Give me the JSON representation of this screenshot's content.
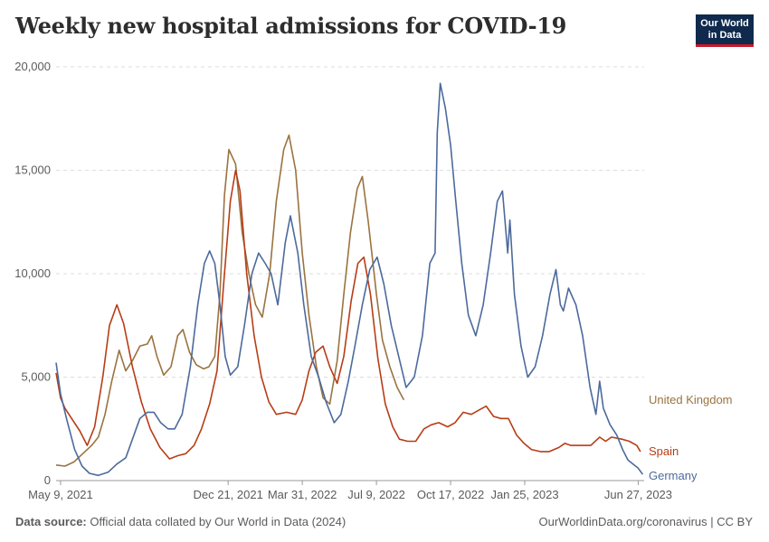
{
  "title": "Weekly new hospital admissions for COVID-19",
  "logo": {
    "line1": "Our World",
    "line2": "in Data"
  },
  "footer": {
    "source_label": "Data source:",
    "source_text": "Official data collated by Our World in Data (2024)",
    "url_text": "OurWorldinData.org/coronavirus | CC BY"
  },
  "colors": {
    "germany": "#4c6a9c",
    "spain": "#b73d16",
    "uk": "#9a7340",
    "grid": "#dddddd",
    "text": "#5b5b5b"
  },
  "chart_data": {
    "type": "line",
    "title": "Weekly new hospital admissions for COVID-19",
    "xlabel": "",
    "ylabel": "",
    "ylim": [
      0,
      20000
    ],
    "yticks": [
      {
        "value": 0,
        "label": "0"
      },
      {
        "value": 5000,
        "label": "5,000"
      },
      {
        "value": 10000,
        "label": "10,000"
      },
      {
        "value": 15000,
        "label": "15,000"
      },
      {
        "value": 20000,
        "label": "20,000"
      }
    ],
    "xlim": [
      "2021-05-03",
      "2023-07-05"
    ],
    "xticks": [
      {
        "date": "2021-05-09",
        "label": "May 9, 2021"
      },
      {
        "date": "2021-12-21",
        "label": "Dec 21, 2021"
      },
      {
        "date": "2022-03-31",
        "label": "Mar 31, 2022"
      },
      {
        "date": "2022-07-09",
        "label": "Jul 9, 2022"
      },
      {
        "date": "2022-10-17",
        "label": "Oct 17, 2022"
      },
      {
        "date": "2023-01-25",
        "label": "Jan 25, 2023"
      },
      {
        "date": "2023-06-27",
        "label": "Jun 27, 2023"
      }
    ],
    "grid": "horizontal dashed",
    "series": [
      {
        "name": "United Kingdom",
        "key": "uk",
        "points": [
          [
            "2021-05-03",
            750
          ],
          [
            "2021-05-15",
            700
          ],
          [
            "2021-05-27",
            900
          ],
          [
            "2021-06-08",
            1300
          ],
          [
            "2021-06-20",
            1700
          ],
          [
            "2021-06-29",
            2100
          ],
          [
            "2021-07-08",
            3200
          ],
          [
            "2021-07-17",
            4800
          ],
          [
            "2021-07-27",
            6300
          ],
          [
            "2021-08-05",
            5300
          ],
          [
            "2021-08-14",
            5800
          ],
          [
            "2021-08-24",
            6500
          ],
          [
            "2021-09-03",
            6600
          ],
          [
            "2021-09-09",
            7000
          ],
          [
            "2021-09-16",
            6000
          ],
          [
            "2021-09-25",
            5100
          ],
          [
            "2021-10-05",
            5500
          ],
          [
            "2021-10-14",
            7000
          ],
          [
            "2021-10-21",
            7300
          ],
          [
            "2021-10-30",
            6200
          ],
          [
            "2021-11-08",
            5600
          ],
          [
            "2021-11-18",
            5400
          ],
          [
            "2021-11-25",
            5500
          ],
          [
            "2021-12-03",
            6000
          ],
          [
            "2021-12-10",
            9000
          ],
          [
            "2021-12-16",
            13800
          ],
          [
            "2021-12-22",
            16000
          ],
          [
            "2021-12-31",
            15300
          ],
          [
            "2022-01-09",
            12000
          ],
          [
            "2022-01-18",
            10000
          ],
          [
            "2022-01-27",
            8500
          ],
          [
            "2022-02-05",
            7900
          ],
          [
            "2022-02-15",
            10000
          ],
          [
            "2022-02-24",
            13500
          ],
          [
            "2022-03-06",
            16000
          ],
          [
            "2022-03-13",
            16700
          ],
          [
            "2022-03-22",
            15000
          ],
          [
            "2022-03-31",
            11000
          ],
          [
            "2022-04-09",
            8000
          ],
          [
            "2022-04-19",
            5500
          ],
          [
            "2022-04-28",
            4000
          ],
          [
            "2022-05-07",
            3700
          ],
          [
            "2022-05-17",
            5800
          ],
          [
            "2022-05-26",
            9000
          ],
          [
            "2022-06-04",
            12000
          ],
          [
            "2022-06-13",
            14100
          ],
          [
            "2022-06-20",
            14700
          ],
          [
            "2022-06-28",
            12500
          ],
          [
            "2022-07-09",
            9000
          ],
          [
            "2022-07-17",
            6800
          ],
          [
            "2022-07-27",
            5500
          ],
          [
            "2022-08-06",
            4500
          ],
          [
            "2022-08-15",
            3900
          ]
        ]
      },
      {
        "name": "Spain",
        "key": "spain",
        "points": [
          [
            "2021-05-03",
            5200
          ],
          [
            "2021-05-09",
            4000
          ],
          [
            "2021-05-15",
            3500
          ],
          [
            "2021-05-24",
            3000
          ],
          [
            "2021-06-04",
            2400
          ],
          [
            "2021-06-14",
            1700
          ],
          [
            "2021-06-24",
            2600
          ],
          [
            "2021-07-05",
            5000
          ],
          [
            "2021-07-14",
            7500
          ],
          [
            "2021-07-24",
            8500
          ],
          [
            "2021-08-02",
            7600
          ],
          [
            "2021-08-14",
            5500
          ],
          [
            "2021-08-26",
            3800
          ],
          [
            "2021-09-07",
            2500
          ],
          [
            "2021-09-20",
            1600
          ],
          [
            "2021-10-03",
            1050
          ],
          [
            "2021-10-14",
            1200
          ],
          [
            "2021-10-25",
            1300
          ],
          [
            "2021-11-05",
            1700
          ],
          [
            "2021-11-15",
            2500
          ],
          [
            "2021-11-26",
            3700
          ],
          [
            "2021-12-06",
            5300
          ],
          [
            "2021-12-15",
            9500
          ],
          [
            "2021-12-24",
            13500
          ],
          [
            "2021-12-31",
            15000
          ],
          [
            "2022-01-06",
            14000
          ],
          [
            "2022-01-15",
            10000
          ],
          [
            "2022-01-25",
            7000
          ],
          [
            "2022-02-04",
            5000
          ],
          [
            "2022-02-14",
            3800
          ],
          [
            "2022-02-24",
            3200
          ],
          [
            "2022-03-10",
            3300
          ],
          [
            "2022-03-22",
            3200
          ],
          [
            "2022-03-31",
            3900
          ],
          [
            "2022-04-09",
            5300
          ],
          [
            "2022-04-18",
            6200
          ],
          [
            "2022-04-28",
            6500
          ],
          [
            "2022-05-07",
            5500
          ],
          [
            "2022-05-17",
            4700
          ],
          [
            "2022-05-26",
            6000
          ],
          [
            "2022-06-05",
            8700
          ],
          [
            "2022-06-14",
            10500
          ],
          [
            "2022-06-22",
            10800
          ],
          [
            "2022-07-01",
            9000
          ],
          [
            "2022-07-11",
            5900
          ],
          [
            "2022-07-21",
            3700
          ],
          [
            "2022-07-31",
            2600
          ],
          [
            "2022-08-09",
            2000
          ],
          [
            "2022-08-20",
            1900
          ],
          [
            "2022-08-31",
            1900
          ],
          [
            "2022-09-11",
            2500
          ],
          [
            "2022-09-21",
            2700
          ],
          [
            "2022-10-01",
            2800
          ],
          [
            "2022-10-13",
            2600
          ],
          [
            "2022-10-23",
            2800
          ],
          [
            "2022-11-03",
            3300
          ],
          [
            "2022-11-14",
            3200
          ],
          [
            "2022-11-24",
            3400
          ],
          [
            "2022-12-04",
            3600
          ],
          [
            "2022-12-14",
            3100
          ],
          [
            "2022-12-24",
            3000
          ],
          [
            "2023-01-03",
            3000
          ],
          [
            "2023-01-14",
            2200
          ],
          [
            "2023-01-24",
            1800
          ],
          [
            "2023-02-03",
            1500
          ],
          [
            "2023-02-15",
            1400
          ],
          [
            "2023-02-27",
            1400
          ],
          [
            "2023-03-12",
            1600
          ],
          [
            "2023-03-20",
            1800
          ],
          [
            "2023-03-28",
            1700
          ],
          [
            "2023-04-10",
            1700
          ],
          [
            "2023-04-24",
            1700
          ],
          [
            "2023-05-06",
            2100
          ],
          [
            "2023-05-14",
            1900
          ],
          [
            "2023-05-22",
            2100
          ],
          [
            "2023-06-05",
            2000
          ],
          [
            "2023-06-15",
            1900
          ],
          [
            "2023-06-25",
            1700
          ],
          [
            "2023-06-30",
            1400
          ]
        ]
      },
      {
        "name": "Germany",
        "key": "germany",
        "points": [
          [
            "2021-05-03",
            5700
          ],
          [
            "2021-05-09",
            4200
          ],
          [
            "2021-05-17",
            3000
          ],
          [
            "2021-05-28",
            1500
          ],
          [
            "2021-06-07",
            700
          ],
          [
            "2021-06-17",
            350
          ],
          [
            "2021-06-29",
            250
          ],
          [
            "2021-07-12",
            400
          ],
          [
            "2021-07-24",
            800
          ],
          [
            "2021-08-05",
            1100
          ],
          [
            "2021-08-14",
            2000
          ],
          [
            "2021-08-24",
            3000
          ],
          [
            "2021-09-03",
            3300
          ],
          [
            "2021-09-12",
            3300
          ],
          [
            "2021-09-21",
            2800
          ],
          [
            "2021-10-01",
            2500
          ],
          [
            "2021-10-10",
            2500
          ],
          [
            "2021-10-20",
            3200
          ],
          [
            "2021-10-31",
            5500
          ],
          [
            "2021-11-10",
            8500
          ],
          [
            "2021-11-19",
            10500
          ],
          [
            "2021-11-26",
            11100
          ],
          [
            "2021-12-03",
            10500
          ],
          [
            "2021-12-10",
            8500
          ],
          [
            "2021-12-17",
            6000
          ],
          [
            "2021-12-24",
            5100
          ],
          [
            "2022-01-03",
            5500
          ],
          [
            "2022-01-12",
            7500
          ],
          [
            "2022-01-22",
            10000
          ],
          [
            "2022-01-31",
            11000
          ],
          [
            "2022-02-09",
            10500
          ],
          [
            "2022-02-17",
            10000
          ],
          [
            "2022-02-26",
            8500
          ],
          [
            "2022-03-08",
            11500
          ],
          [
            "2022-03-15",
            12800
          ],
          [
            "2022-03-25",
            11000
          ],
          [
            "2022-04-02",
            8500
          ],
          [
            "2022-04-12",
            6000
          ],
          [
            "2022-04-22",
            5000
          ],
          [
            "2022-05-02",
            3800
          ],
          [
            "2022-05-13",
            2800
          ],
          [
            "2022-05-22",
            3200
          ],
          [
            "2022-06-01",
            4800
          ],
          [
            "2022-06-10",
            6500
          ],
          [
            "2022-06-20",
            8500
          ],
          [
            "2022-06-30",
            10200
          ],
          [
            "2022-07-10",
            10800
          ],
          [
            "2022-07-19",
            9500
          ],
          [
            "2022-07-29",
            7500
          ],
          [
            "2022-08-08",
            6000
          ],
          [
            "2022-08-18",
            4500
          ],
          [
            "2022-08-29",
            5000
          ],
          [
            "2022-09-09",
            7000
          ],
          [
            "2022-09-19",
            10500
          ],
          [
            "2022-09-26",
            11000
          ],
          [
            "2022-09-29",
            16800
          ],
          [
            "2022-10-03",
            19200
          ],
          [
            "2022-10-10",
            18000
          ],
          [
            "2022-10-17",
            16200
          ],
          [
            "2022-10-24",
            13500
          ],
          [
            "2022-11-01",
            10500
          ],
          [
            "2022-11-10",
            8000
          ],
          [
            "2022-11-20",
            7000
          ],
          [
            "2022-11-30",
            8500
          ],
          [
            "2022-12-10",
            11000
          ],
          [
            "2022-12-19",
            13500
          ],
          [
            "2022-12-26",
            14000
          ],
          [
            "2023-01-02",
            11000
          ],
          [
            "2023-01-05",
            12600
          ],
          [
            "2023-01-11",
            9000
          ],
          [
            "2023-01-20",
            6500
          ],
          [
            "2023-01-29",
            5000
          ],
          [
            "2023-02-08",
            5500
          ],
          [
            "2023-02-18",
            7000
          ],
          [
            "2023-02-28",
            9000
          ],
          [
            "2023-03-08",
            10200
          ],
          [
            "2023-03-14",
            8500
          ],
          [
            "2023-03-18",
            8200
          ],
          [
            "2023-03-25",
            9300
          ],
          [
            "2023-04-04",
            8500
          ],
          [
            "2023-04-13",
            7000
          ],
          [
            "2023-04-23",
            4500
          ],
          [
            "2023-05-01",
            3200
          ],
          [
            "2023-05-06",
            4800
          ],
          [
            "2023-05-11",
            3500
          ],
          [
            "2023-05-20",
            2700
          ],
          [
            "2023-05-29",
            2200
          ],
          [
            "2023-06-06",
            1500
          ],
          [
            "2023-06-13",
            1000
          ],
          [
            "2023-06-20",
            800
          ],
          [
            "2023-06-27",
            600
          ],
          [
            "2023-07-03",
            300
          ]
        ]
      }
    ],
    "series_label_text": {
      "uk": "United Kingdom",
      "spain": "Spain",
      "germany": "Germany"
    }
  }
}
